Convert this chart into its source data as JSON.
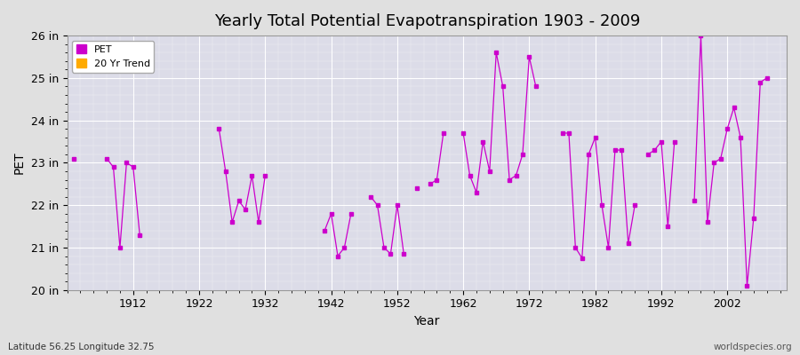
{
  "title": "Yearly Total Potential Evapotranspiration 1903 - 2009",
  "xlabel": "Year",
  "ylabel": "PET",
  "subtitle_left": "Latitude 56.25 Longitude 32.75",
  "subtitle_right": "worldspecies.org",
  "ylim": [
    20,
    26
  ],
  "ytick_labels": [
    "20 in",
    "21 in",
    "22 in",
    "23 in",
    "24 in",
    "25 in",
    "26 in"
  ],
  "ytick_values": [
    20,
    21,
    22,
    23,
    24,
    25,
    26
  ],
  "xlim": [
    1902,
    2011
  ],
  "xtick_values": [
    1912,
    1922,
    1932,
    1942,
    1952,
    1962,
    1972,
    1982,
    1992,
    2002
  ],
  "line_color": "#cc00cc",
  "marker_color": "#cc00cc",
  "trend_color": "#ffaa00",
  "background_color": "#e0e0e0",
  "plot_bg_color": "#dcdce8",
  "grid_color": "#ffffff",
  "pet_data": [
    [
      1903,
      23.1
    ],
    [
      1908,
      23.1
    ],
    [
      1909,
      22.9
    ],
    [
      1910,
      21.0
    ],
    [
      1911,
      23.0
    ],
    [
      1912,
      22.9
    ],
    [
      1913,
      21.3
    ],
    [
      1925,
      23.8
    ],
    [
      1926,
      22.8
    ],
    [
      1927,
      21.6
    ],
    [
      1928,
      22.1
    ],
    [
      1929,
      21.9
    ],
    [
      1930,
      22.7
    ],
    [
      1931,
      21.6
    ],
    [
      1932,
      22.7
    ],
    [
      1941,
      21.4
    ],
    [
      1942,
      21.8
    ],
    [
      1943,
      20.8
    ],
    [
      1944,
      21.0
    ],
    [
      1945,
      21.8
    ],
    [
      1948,
      22.2
    ],
    [
      1949,
      22.0
    ],
    [
      1950,
      21.0
    ],
    [
      1951,
      20.85
    ],
    [
      1952,
      22.0
    ],
    [
      1953,
      20.85
    ],
    [
      1955,
      22.4
    ],
    [
      1957,
      22.5
    ],
    [
      1958,
      22.6
    ],
    [
      1959,
      23.7
    ],
    [
      1962,
      23.7
    ],
    [
      1963,
      22.7
    ],
    [
      1964,
      22.3
    ],
    [
      1965,
      23.5
    ],
    [
      1966,
      22.8
    ],
    [
      1967,
      25.6
    ],
    [
      1968,
      24.8
    ],
    [
      1969,
      22.6
    ],
    [
      1970,
      22.7
    ],
    [
      1971,
      23.2
    ],
    [
      1972,
      25.5
    ],
    [
      1973,
      24.8
    ],
    [
      1977,
      23.7
    ],
    [
      1978,
      23.7
    ],
    [
      1979,
      21.0
    ],
    [
      1980,
      20.75
    ],
    [
      1981,
      23.2
    ],
    [
      1982,
      23.6
    ],
    [
      1983,
      22.0
    ],
    [
      1984,
      21.0
    ],
    [
      1985,
      23.3
    ],
    [
      1986,
      23.3
    ],
    [
      1987,
      21.1
    ],
    [
      1988,
      22.0
    ],
    [
      1990,
      23.2
    ],
    [
      1991,
      23.3
    ],
    [
      1992,
      23.5
    ],
    [
      1993,
      21.5
    ],
    [
      1994,
      23.5
    ],
    [
      1997,
      22.1
    ],
    [
      1998,
      26.0
    ],
    [
      1999,
      21.6
    ],
    [
      2000,
      23.0
    ],
    [
      2001,
      23.1
    ],
    [
      2002,
      23.8
    ],
    [
      2003,
      24.3
    ],
    [
      2004,
      23.6
    ],
    [
      2005,
      20.1
    ],
    [
      2006,
      21.7
    ],
    [
      2007,
      24.9
    ],
    [
      2008,
      25.0
    ]
  ]
}
